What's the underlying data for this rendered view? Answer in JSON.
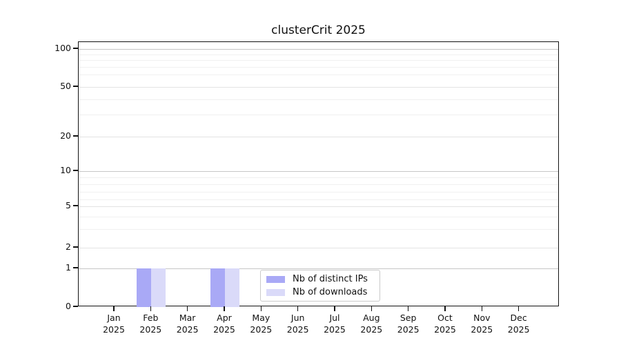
{
  "chart_data": {
    "type": "bar",
    "title": "clusterCrit 2025",
    "categories": [
      "Jan",
      "Feb",
      "Mar",
      "Apr",
      "May",
      "Jun",
      "Jul",
      "Aug",
      "Sep",
      "Oct",
      "Nov",
      "Dec"
    ],
    "category_year": "2025",
    "series": [
      {
        "name": "Nb of distinct IPs",
        "color": "#a9a9f6",
        "values": [
          0,
          1,
          0,
          1,
          0,
          0,
          0,
          0,
          0,
          0,
          0,
          0
        ]
      },
      {
        "name": "Nb of downloads",
        "color": "#dadaf9",
        "values": [
          0,
          1,
          0,
          1,
          0,
          0,
          0,
          0,
          0,
          0,
          0,
          0
        ]
      }
    ],
    "y_axis": {
      "scale": "log-like",
      "major_ticks": [
        0,
        1,
        2,
        5,
        10,
        20,
        50,
        100
      ],
      "minor_gridline_values": [
        3,
        4,
        6,
        7,
        8,
        9,
        30,
        40,
        60,
        70,
        80,
        90
      ],
      "ylim": [
        0,
        100
      ]
    },
    "grid": "on",
    "legend_position": "bottom-center"
  },
  "colors": {
    "bar_distinct_ips": "#a9a9f6",
    "bar_downloads": "#dadaf9",
    "axis": "#111111",
    "grid_power10": "#c6c6c6",
    "grid_major_other": "#e3e3e3",
    "grid_minor": "#f0f0f0",
    "legend_border": "#c9c9c9",
    "text": "#111111"
  }
}
